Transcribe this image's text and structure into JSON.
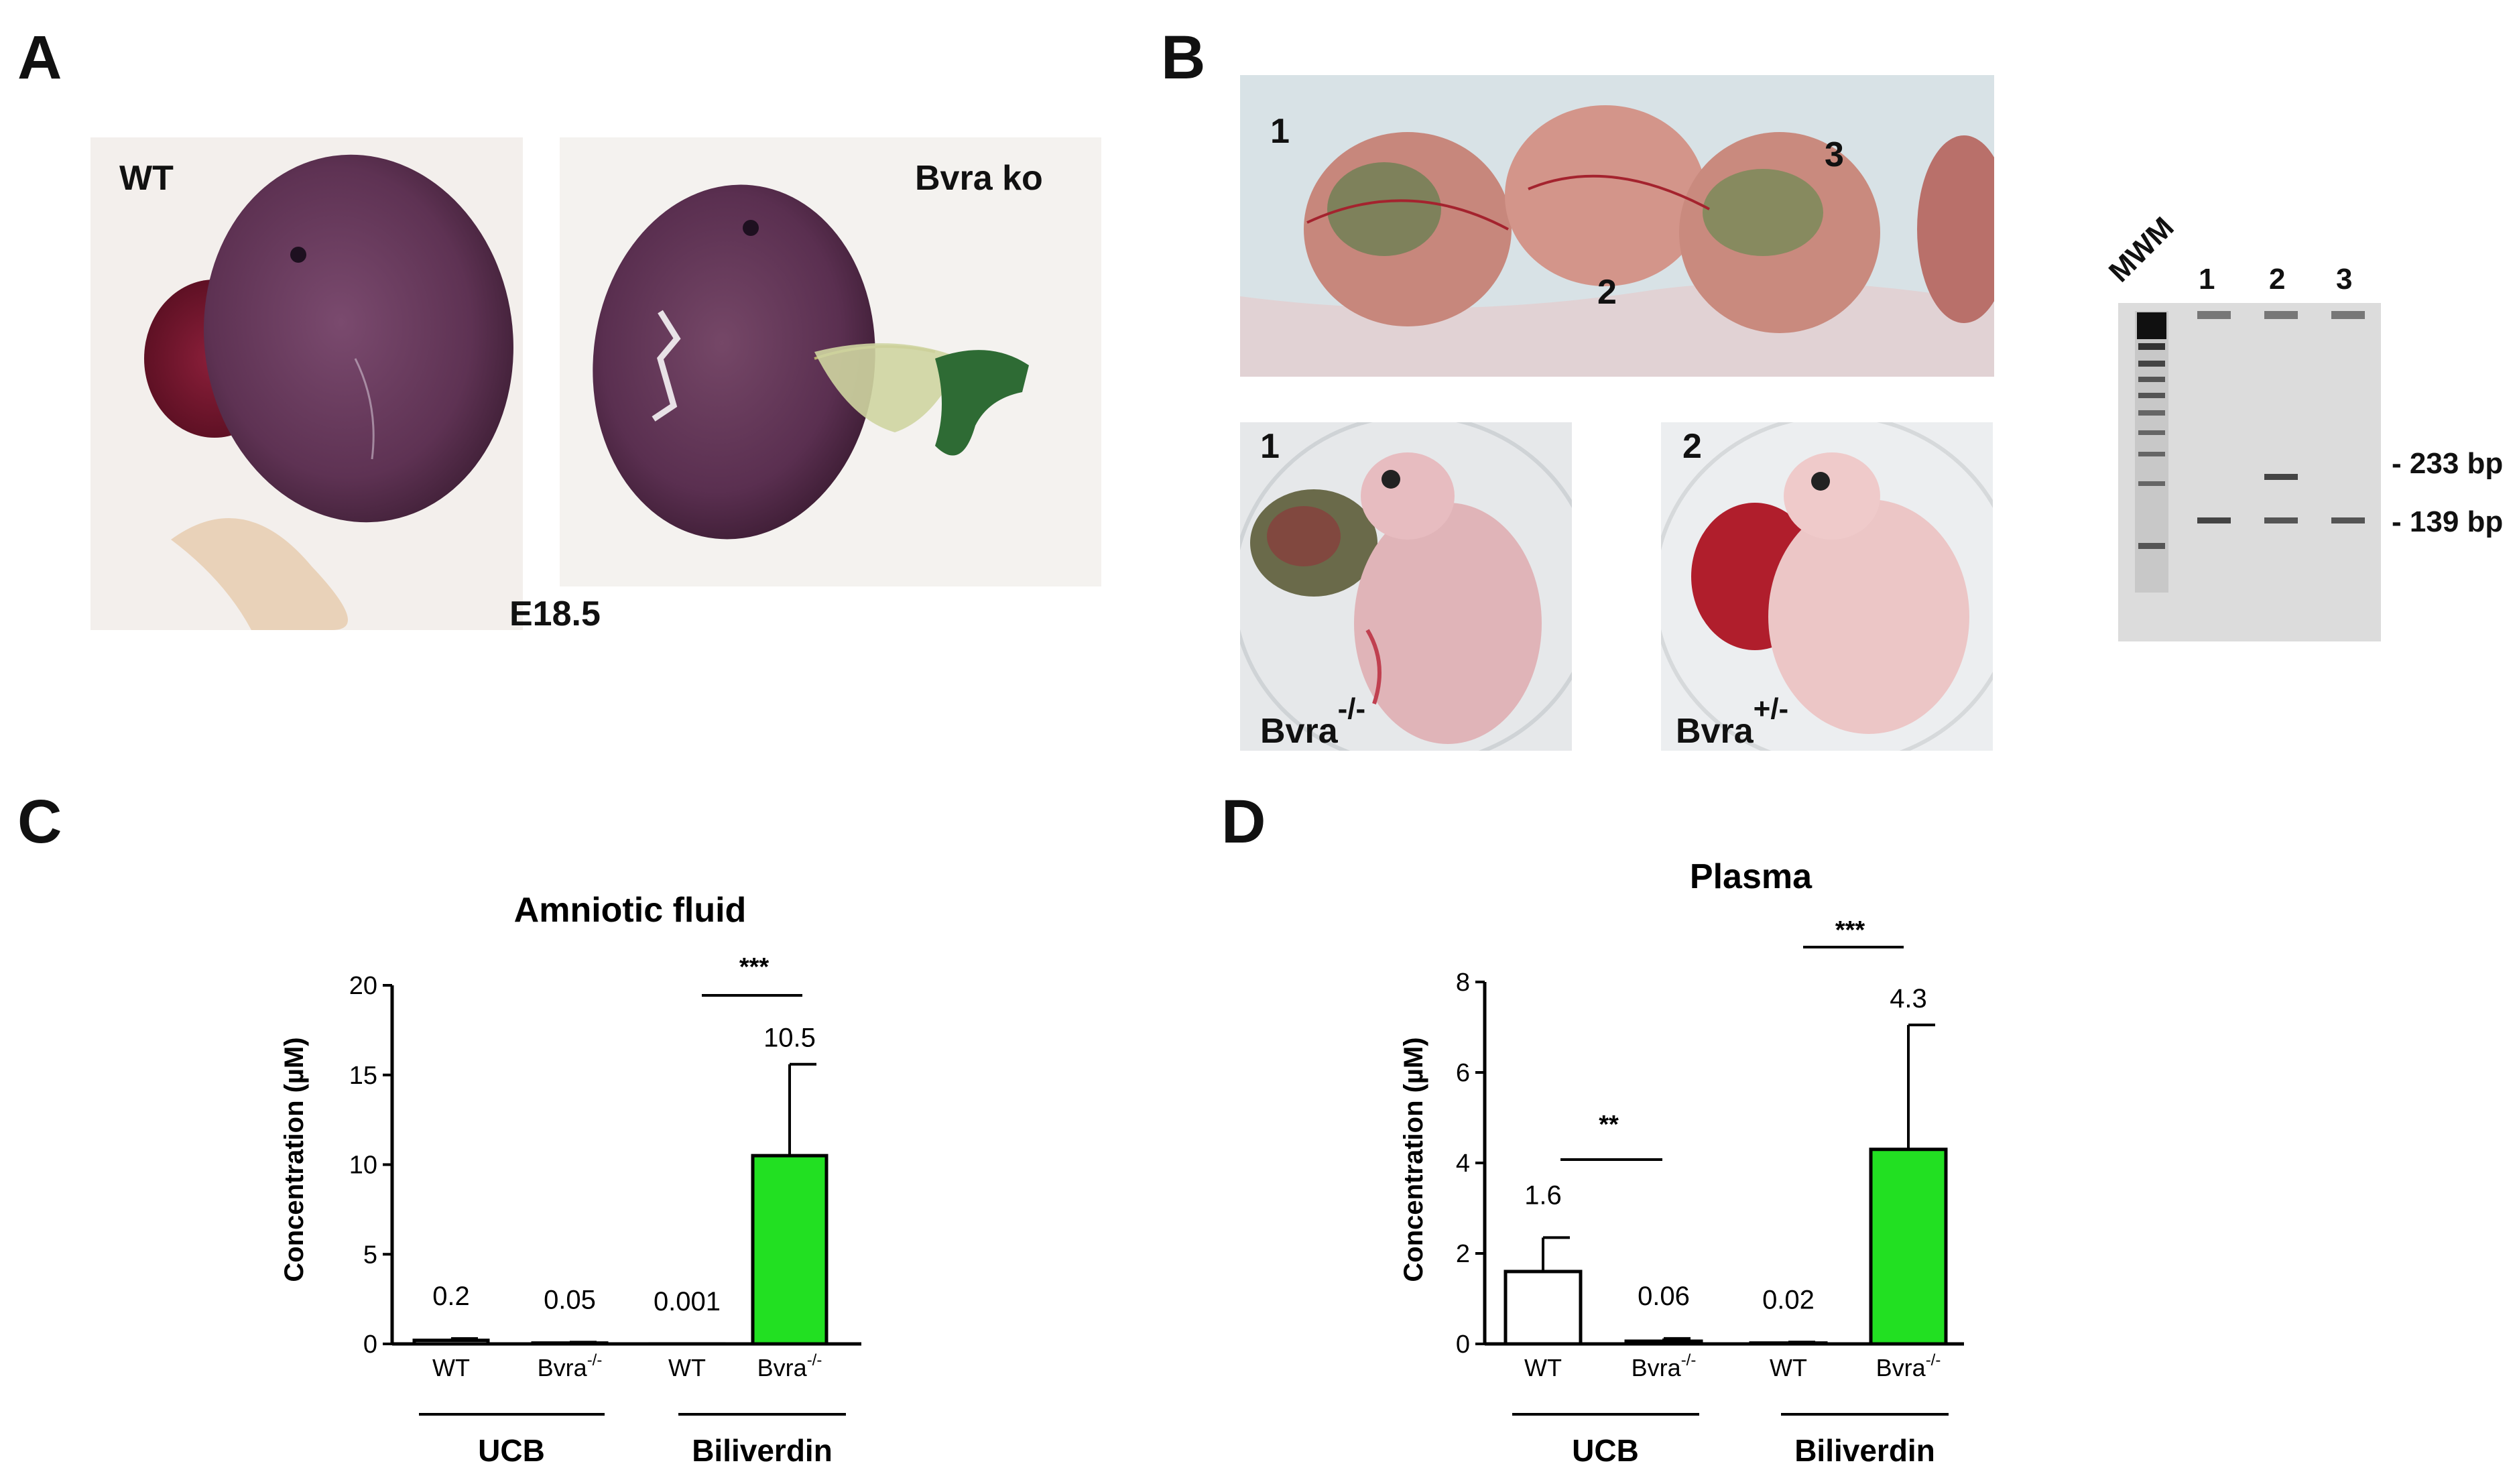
{
  "panel_letters": {
    "a": "A",
    "b": "B",
    "c": "C",
    "d": "D"
  },
  "panel_a": {
    "left_label": "WT",
    "right_label": "Bvra ko",
    "stage": "E18.5"
  },
  "panel_b": {
    "top_numbers": [
      "1",
      "2",
      "3"
    ],
    "pup1": {
      "number": "1",
      "genotype": "Bvra",
      "superscript": "-/-"
    },
    "pup2": {
      "number": "2",
      "genotype": "Bvra",
      "superscript": "+/-"
    },
    "gel": {
      "marker": "MWM",
      "lanes": [
        "1",
        "2",
        "3"
      ],
      "band_upper": "- 233 bp",
      "band_lower": "- 139 bp"
    }
  },
  "colors": {
    "green_bar": "#22e022",
    "axis": "#000000"
  },
  "chart_data": [
    {
      "type": "bar",
      "title": "Amniotic fluid",
      "ylabel": "Concentration (µM)",
      "ylim": [
        0,
        20
      ],
      "yticks": [
        "0",
        "5",
        "10",
        "15",
        "20"
      ],
      "categories": [
        "WT",
        "Bvra",
        "WT",
        "Bvra"
      ],
      "category_superscripts": [
        "",
        "-/-",
        "",
        "-/-"
      ],
      "values": [
        0.2,
        0.05,
        0.001,
        10.5
      ],
      "errors": [
        0.1,
        0.05,
        0,
        5.1
      ],
      "value_labels": [
        "0.2",
        "0.05",
        "0.001",
        "10.5"
      ],
      "bar_fill": [
        "white",
        "white",
        "white",
        "green"
      ],
      "groups": [
        "UCB",
        "Biliverdin"
      ],
      "significance": [
        {
          "between": [
            2,
            3
          ],
          "label": "***"
        }
      ]
    },
    {
      "type": "bar",
      "title": "Plasma",
      "ylabel": "Concentration (µM)",
      "ylim": [
        0,
        8
      ],
      "yticks": [
        "0",
        "2",
        "4",
        "6",
        "8"
      ],
      "categories": [
        "WT",
        "Bvra",
        "WT",
        "Bvra"
      ],
      "category_superscripts": [
        "",
        "-/-",
        "",
        "-/-"
      ],
      "values": [
        1.6,
        0.06,
        0.02,
        4.3
      ],
      "errors": [
        0.75,
        0.06,
        0.02,
        2.75
      ],
      "value_labels": [
        "1.6",
        "0.06",
        "0.02",
        "4.3"
      ],
      "bar_fill": [
        "white",
        "white",
        "white",
        "green"
      ],
      "groups": [
        "UCB",
        "Biliverdin"
      ],
      "significance": [
        {
          "between": [
            0,
            1
          ],
          "label": "**"
        },
        {
          "between": [
            2,
            3
          ],
          "label": "***"
        }
      ]
    }
  ]
}
